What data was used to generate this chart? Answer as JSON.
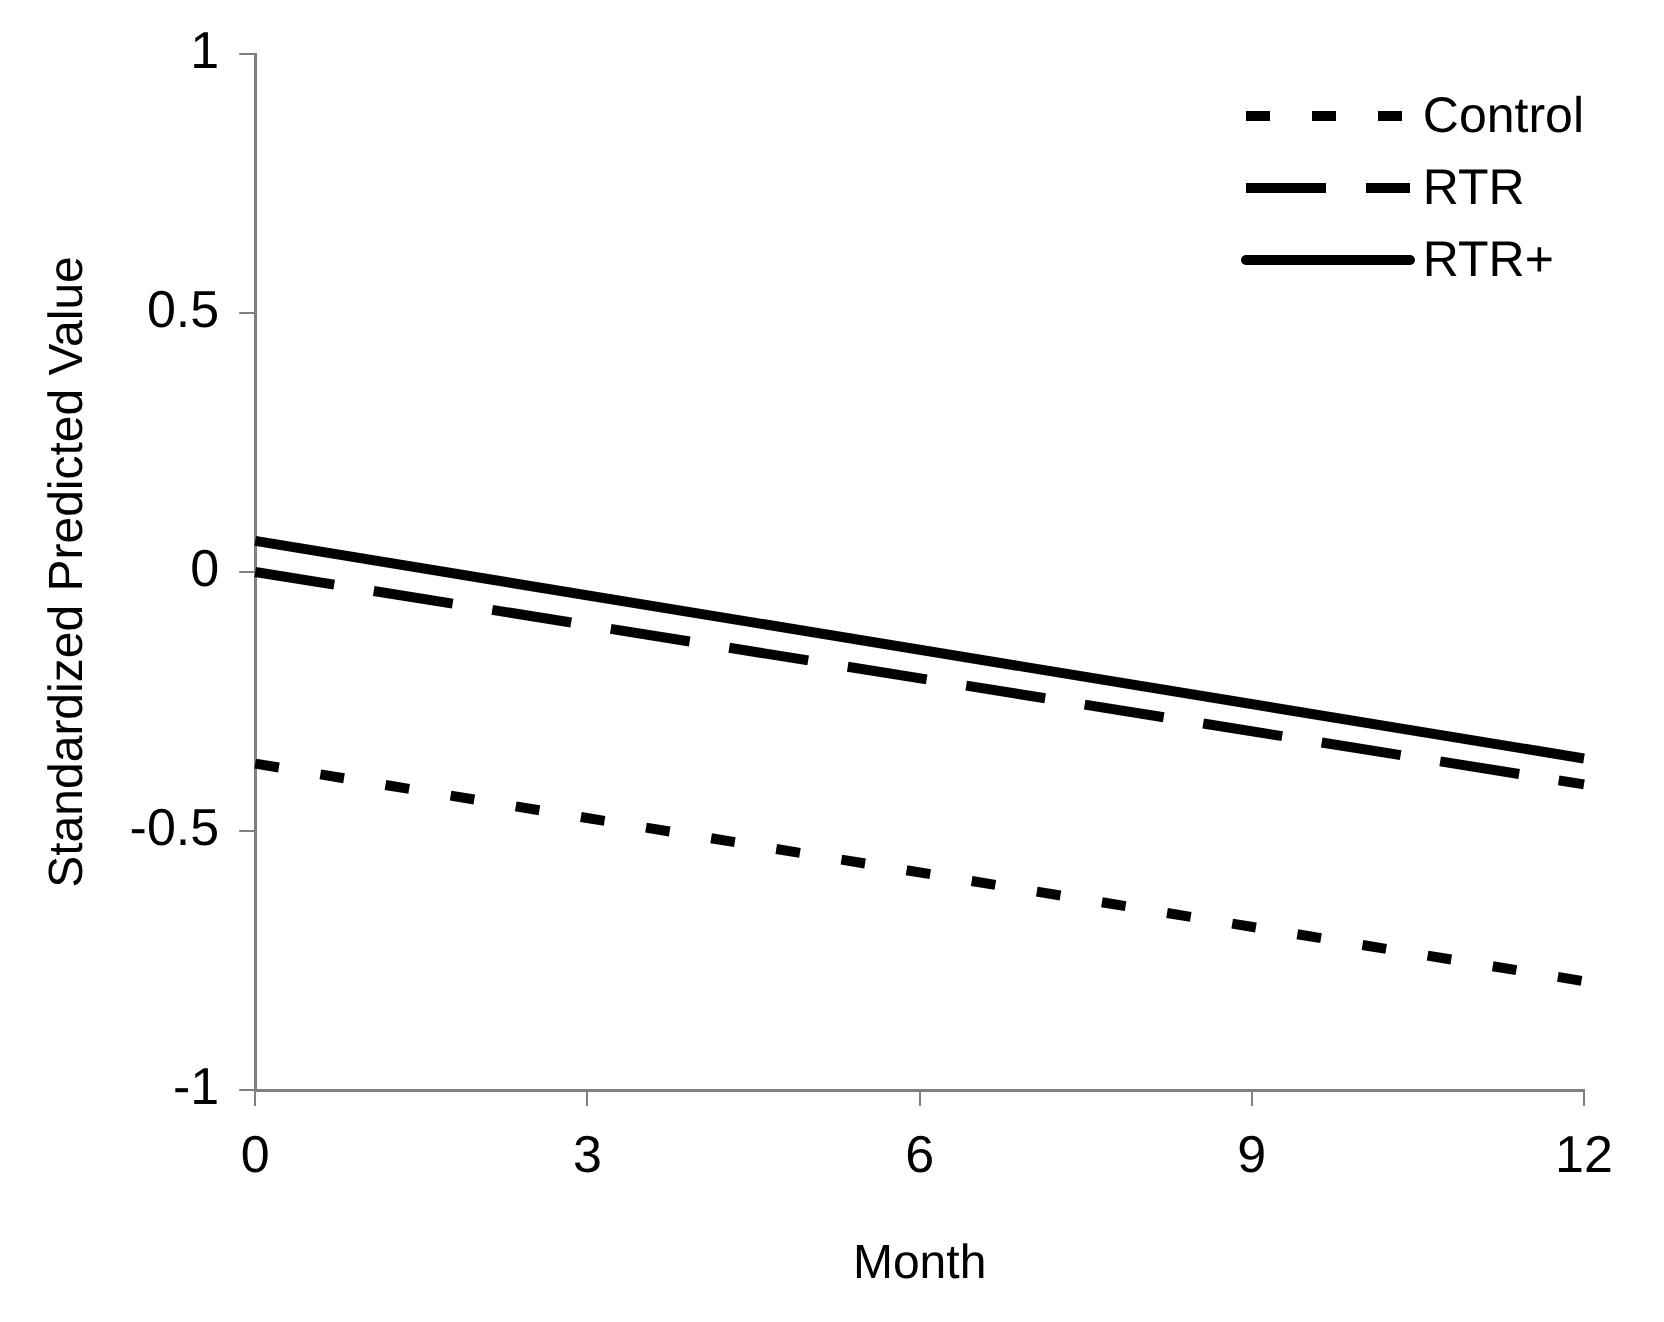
{
  "chart_data": {
    "type": "line",
    "xlabel": "Month",
    "ylabel": "Standardized Predicted Value",
    "xlim": [
      0,
      12
    ],
    "xticks": [
      0,
      3,
      6,
      9,
      12
    ],
    "ylim": [
      -1,
      1
    ],
    "yticks": [
      -1,
      -0.5,
      0,
      0.5,
      1
    ],
    "x": [
      0,
      12
    ],
    "grid": false,
    "legend": "top right",
    "marker": "none",
    "series": [
      {
        "name": "Control",
        "color": "#000000",
        "line_style": "dotted",
        "values": [
          -0.37,
          -0.79
        ]
      },
      {
        "name": "RTR",
        "color": "#000000",
        "line_style": "dashed",
        "values": [
          0,
          -0.41
        ]
      },
      {
        "name": "RTR+",
        "color": "#000000",
        "line_style": "solid",
        "values": [
          0.06,
          -0.36
        ]
      }
    ]
  }
}
